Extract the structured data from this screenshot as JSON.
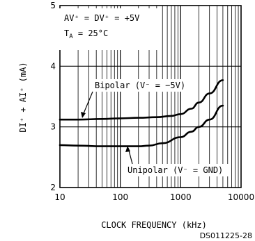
{
  "chart_data": {
    "type": "line",
    "title": "",
    "xlabel": "CLOCK FREQUENCY (kHz)",
    "ylabel": "DI⁺ + AI⁺ (mA)",
    "xscale": "log",
    "xlim": [
      10,
      10000
    ],
    "ylim": [
      2,
      5
    ],
    "grid": true,
    "x_ticks": [
      "10",
      "100",
      "1000",
      "10000"
    ],
    "y_ticks": [
      "2",
      "3",
      "4",
      "5"
    ],
    "conditions": {
      "line1": "AV⁺ = DV⁺ = +5V",
      "line2_prefix": "T",
      "line2_sub": "A",
      "line2_rest": " = 25°C"
    },
    "series": [
      {
        "name": "Bipolar (V⁻ = −5V)",
        "points": [
          [
            10,
            3.12
          ],
          [
            20,
            3.12
          ],
          [
            50,
            3.13
          ],
          [
            100,
            3.14
          ],
          [
            200,
            3.15
          ],
          [
            400,
            3.16
          ],
          [
            700,
            3.18
          ],
          [
            1000,
            3.21
          ],
          [
            1500,
            3.3
          ],
          [
            2000,
            3.4
          ],
          [
            3000,
            3.55
          ],
          [
            5000,
            3.77
          ]
        ]
      },
      {
        "name": "Unipolar (V⁻ = GND)",
        "points": [
          [
            10,
            2.7
          ],
          [
            20,
            2.69
          ],
          [
            50,
            2.68
          ],
          [
            100,
            2.68
          ],
          [
            200,
            2.68
          ],
          [
            300,
            2.69
          ],
          [
            500,
            2.73
          ],
          [
            1000,
            2.83
          ],
          [
            1500,
            2.92
          ],
          [
            2000,
            3.0
          ],
          [
            3000,
            3.12
          ],
          [
            5000,
            3.35
          ]
        ]
      }
    ],
    "annotations": [
      {
        "text": "Bipolar (V⁻ = −5V)",
        "target_series": 0
      },
      {
        "text": "Unipolar (V⁻ = GND)",
        "target_series": 1
      }
    ],
    "figure_id": "DS011225-28"
  }
}
